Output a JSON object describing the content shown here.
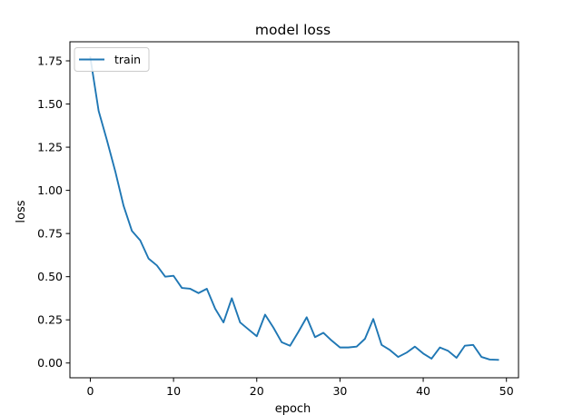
{
  "chart_data": {
    "type": "line",
    "title": "model loss",
    "xlabel": "epoch",
    "ylabel": "loss",
    "xlim": [
      -2.45,
      51.45
    ],
    "ylim": [
      -0.0855,
      1.8605
    ],
    "xticks": [
      0,
      10,
      20,
      30,
      40,
      50
    ],
    "xtick_labels": [
      "0",
      "10",
      "20",
      "30",
      "40",
      "50"
    ],
    "yticks": [
      0.0,
      0.25,
      0.5,
      0.75,
      1.0,
      1.25,
      1.5,
      1.75
    ],
    "ytick_labels": [
      "0.00",
      "0.25",
      "0.50",
      "0.75",
      "1.00",
      "1.25",
      "1.50",
      "1.75"
    ],
    "grid": false,
    "legend": {
      "position": "top-left"
    },
    "series_color": "#1f77b4",
    "series": [
      {
        "name": "train",
        "x": [
          0,
          1,
          2,
          3,
          4,
          5,
          6,
          7,
          8,
          9,
          10,
          11,
          12,
          13,
          14,
          15,
          16,
          17,
          18,
          19,
          20,
          21,
          22,
          23,
          24,
          25,
          26,
          27,
          28,
          29,
          30,
          31,
          32,
          33,
          34,
          35,
          36,
          37,
          38,
          39,
          40,
          41,
          42,
          43,
          44,
          45,
          46,
          47,
          48,
          49
        ],
        "values": [
          1.77,
          1.46,
          1.29,
          1.11,
          0.91,
          0.765,
          0.71,
          0.605,
          0.565,
          0.5,
          0.505,
          0.435,
          0.43,
          0.405,
          0.43,
          0.315,
          0.235,
          0.375,
          0.235,
          0.195,
          0.155,
          0.28,
          0.205,
          0.12,
          0.1,
          0.18,
          0.265,
          0.15,
          0.175,
          0.13,
          0.09,
          0.09,
          0.095,
          0.14,
          0.255,
          0.105,
          0.075,
          0.035,
          0.06,
          0.095,
          0.055,
          0.025,
          0.09,
          0.07,
          0.03,
          0.1,
          0.105,
          0.035,
          0.02,
          0.018
        ]
      }
    ]
  }
}
